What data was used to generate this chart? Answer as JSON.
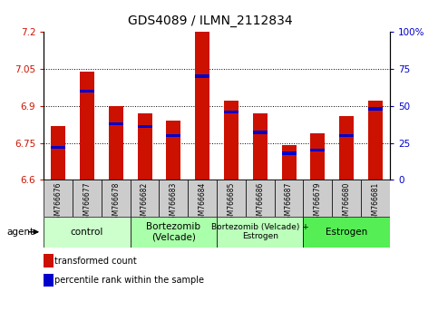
{
  "title": "GDS4089 / ILMN_2112834",
  "samples": [
    "GSM766676",
    "GSM766677",
    "GSM766678",
    "GSM766682",
    "GSM766683",
    "GSM766684",
    "GSM766685",
    "GSM766686",
    "GSM766687",
    "GSM766679",
    "GSM766680",
    "GSM766681"
  ],
  "transformed_count": [
    6.82,
    7.04,
    6.9,
    6.87,
    6.84,
    7.2,
    6.92,
    6.87,
    6.74,
    6.79,
    6.86,
    6.92
  ],
  "percentile_rank": [
    22,
    60,
    38,
    36,
    30,
    70,
    46,
    32,
    18,
    20,
    30,
    48
  ],
  "y_min": 6.6,
  "y_max": 7.2,
  "y_ticks": [
    6.6,
    6.75,
    6.9,
    7.05,
    7.2
  ],
  "y_tick_labels": [
    "6.6",
    "6.75",
    "6.9",
    "7.05",
    "7.2"
  ],
  "right_y_ticks": [
    0,
    25,
    50,
    75,
    100
  ],
  "right_y_labels": [
    "0",
    "25",
    "50",
    "75",
    "100%"
  ],
  "bar_color": "#cc1100",
  "blue_color": "#0000cc",
  "group_boundaries": [
    {
      "start": 0,
      "end": 2,
      "label": "control",
      "color": "#ccffcc"
    },
    {
      "start": 3,
      "end": 5,
      "label": "Bortezomib\n(Velcade)",
      "color": "#aaffaa"
    },
    {
      "start": 6,
      "end": 8,
      "label": "Bortezomib (Velcade) +\nEstrogen",
      "color": "#bbffbb"
    },
    {
      "start": 9,
      "end": 11,
      "label": "Estrogen",
      "color": "#55ee55"
    }
  ],
  "legend_red": "transformed count",
  "legend_blue": "percentile rank within the sample",
  "agent_label": "agent",
  "bar_width": 0.5,
  "sample_box_color": "#cccccc",
  "grid_color": "#000000",
  "title_fontsize": 10,
  "tick_fontsize": 7.5,
  "label_fontsize": 7
}
